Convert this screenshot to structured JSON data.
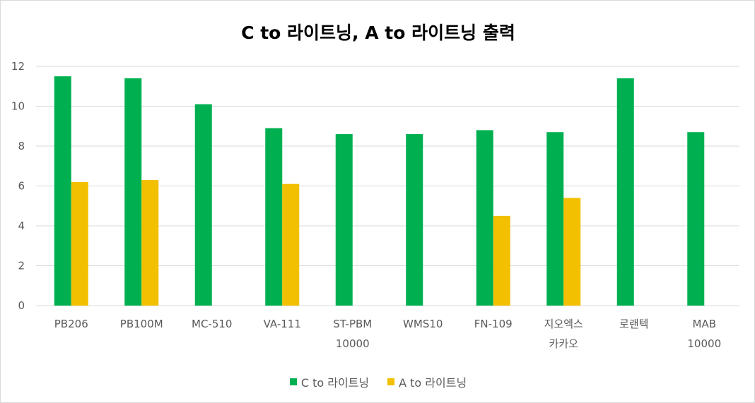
{
  "chart_data": {
    "type": "bar",
    "title": "C to 라이트닝, A to 라이트닝 출력",
    "categories": [
      [
        "PB206"
      ],
      [
        "PB100M"
      ],
      [
        "MC-510"
      ],
      [
        "VA-111"
      ],
      [
        "ST-PBM",
        "10000"
      ],
      [
        "WMS10"
      ],
      [
        "FN-109"
      ],
      [
        "지오엑스",
        "카카오"
      ],
      [
        "로랜텍"
      ],
      [
        "MAB",
        "10000"
      ]
    ],
    "series": [
      {
        "name": "C to 라이트닝",
        "color": "#00b050",
        "values": [
          11.5,
          11.4,
          10.1,
          8.9,
          8.6,
          8.6,
          8.8,
          8.7,
          11.4,
          8.7
        ]
      },
      {
        "name": "A to 라이트닝",
        "color": "#f2c000",
        "values": [
          6.2,
          6.3,
          null,
          6.1,
          null,
          null,
          4.5,
          5.4,
          null,
          null
        ]
      }
    ],
    "ylim": [
      0,
      12
    ],
    "yticks": [
      "0",
      "2",
      "4",
      "6",
      "8",
      "10",
      "12"
    ],
    "grid": true,
    "legend_position": "bottom"
  }
}
